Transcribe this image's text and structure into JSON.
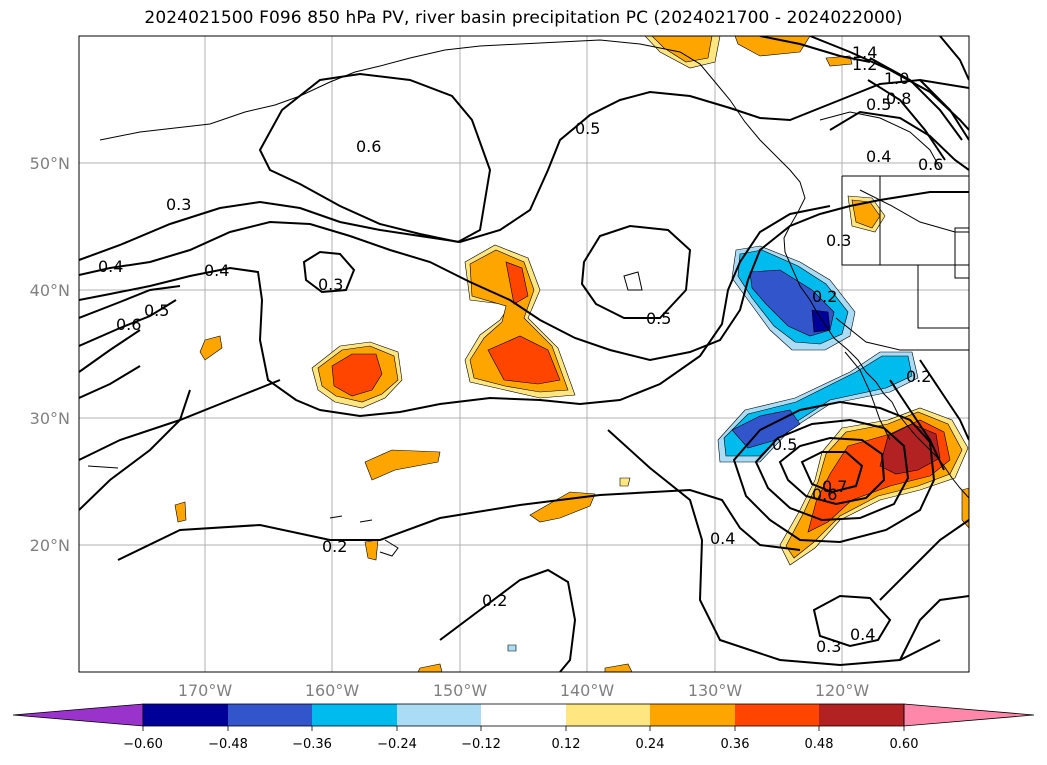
{
  "title": "2024021500 F096 850 hPa PV, river basin precipitation PC (2024021700 - 2024022000)",
  "lat_labels": [
    "50°N",
    "40°N",
    "30°N",
    "20°N"
  ],
  "lon_labels": [
    "170°W",
    "160°W",
    "150°W",
    "140°W",
    "130°W",
    "120°W"
  ],
  "colorbar": {
    "tick_labels": [
      "−0.60",
      "−0.48",
      "−0.36",
      "−0.24",
      "−0.12",
      "0.12",
      "0.24",
      "0.36",
      "0.48",
      "0.60"
    ],
    "colors": {
      "under": "#9933cc",
      "b1": "#000099",
      "b2": "#3355cc",
      "b3": "#00bbee",
      "b4": "#aaddf5",
      "b5": "#ffffff",
      "b6": "#ffe680",
      "b7": "#ffa500",
      "b8": "#ff4500",
      "b9": "#b22222",
      "over": "#ff88aa"
    }
  },
  "contour_labels": [
    "1.4",
    "1.2",
    "1.0",
    "0.8",
    "0.5",
    "0.4",
    "0.6",
    "0.5",
    "0.6",
    "0.3",
    "0.4",
    "0.4",
    "0.5",
    "0.6",
    "0.3",
    "0.5",
    "0.3",
    "0.2",
    "0.2",
    "0.5",
    "0.7",
    "0.6",
    "0.4",
    "0.2",
    "0.2",
    "0.4",
    "0.3"
  ]
}
